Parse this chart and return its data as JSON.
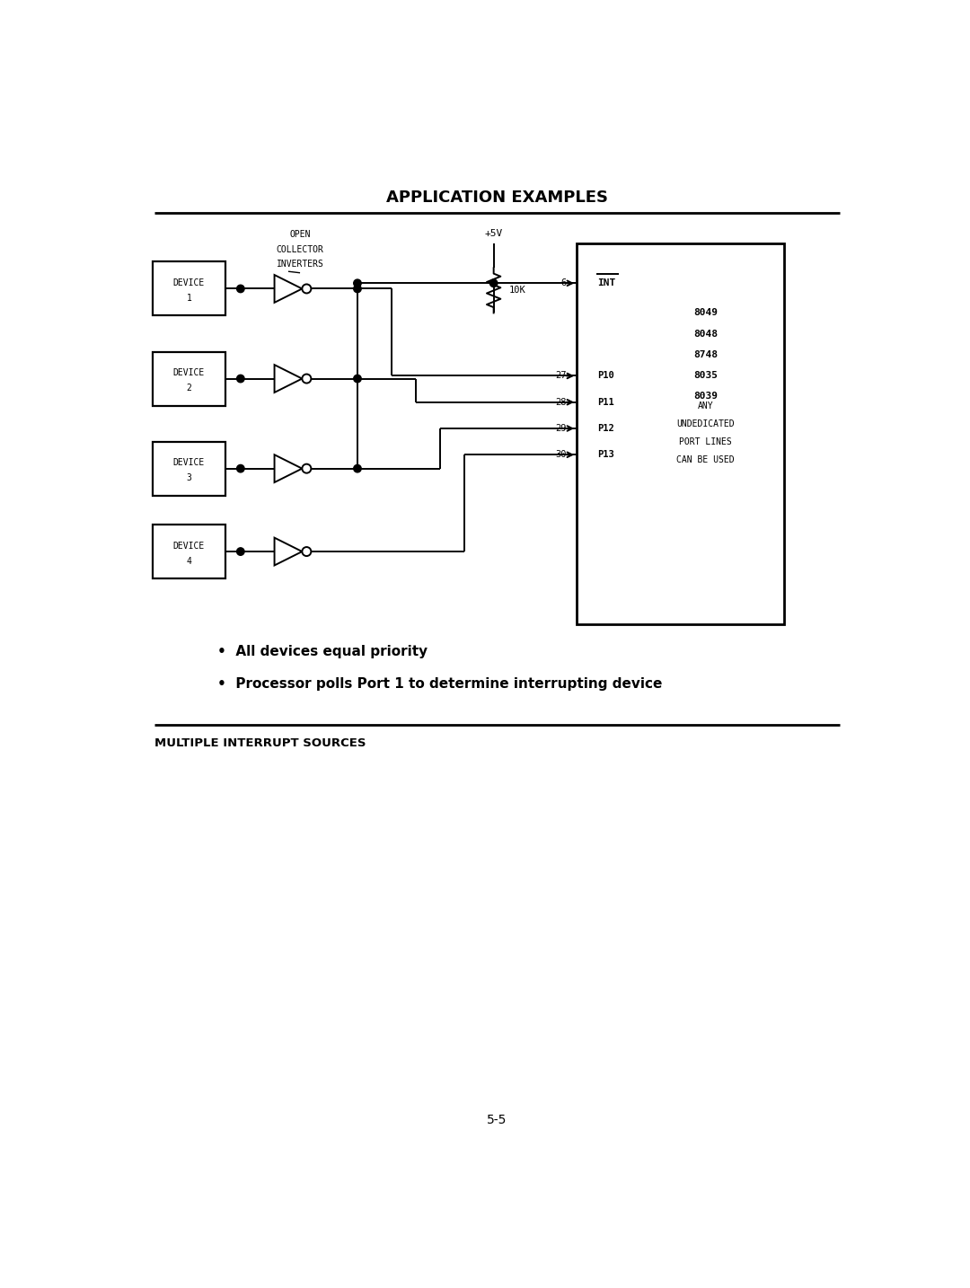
{
  "title": "APPLICATION EXAMPLES",
  "footer_label": "MULTIPLE INTERRUPT SOURCES",
  "page_number": "5-5",
  "bullet1": "All devices equal priority",
  "bullet2": "Processor polls Port 1 to determine interrupting device",
  "open_collector_label": [
    "OPEN",
    "COLLECTOR",
    "INVERTERS"
  ],
  "plus5v_label": "+5V",
  "resistor_label": "10K",
  "ic_labels": [
    "8049",
    "8048",
    "8748",
    "8035",
    "8039"
  ],
  "any_label": [
    "ANY",
    "UNDEDICATED",
    "PORT LINES",
    "CAN BE USED"
  ],
  "int_pin": "INT",
  "devices": [
    "DEVICE\n1",
    "DEVICE\n2",
    "DEVICE\n3",
    "DEVICE\n4"
  ],
  "bg_color": "#ffffff",
  "fg_color": "#000000"
}
